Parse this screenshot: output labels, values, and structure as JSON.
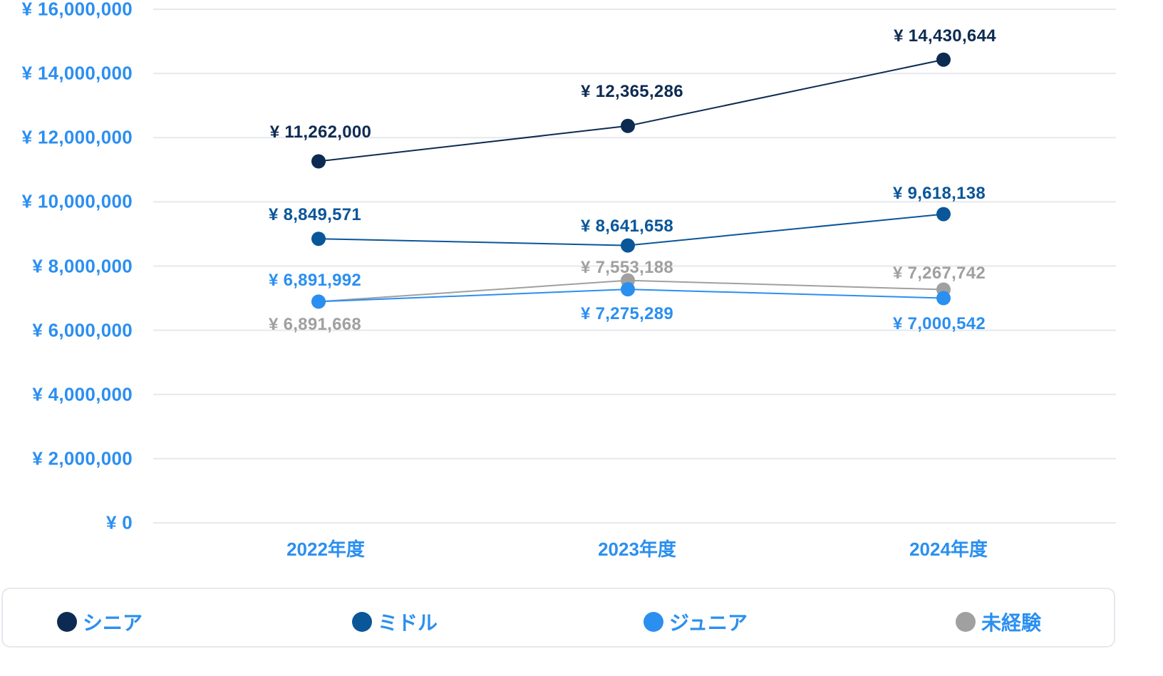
{
  "chart_data": {
    "type": "line",
    "title": "",
    "xlabel": "",
    "ylabel": "",
    "categories": [
      "2022年度",
      "2023年度",
      "2024年度"
    ],
    "ylim": [
      0,
      16000000
    ],
    "yticks": [
      "¥ 0",
      "¥ 2,000,000",
      "¥ 4,000,000",
      "¥ 6,000,000",
      "¥ 8,000,000",
      "¥ 10,000,000",
      "¥ 12,000,000",
      "¥ 14,000,000",
      "¥ 16,000,000"
    ],
    "grid": true,
    "legend_position": "bottom",
    "series": [
      {
        "name": "シニア",
        "color": "#0d2b52",
        "values": [
          11262000,
          12365286,
          14430644
        ],
        "labels": [
          "¥ 11,262,000",
          "¥ 12,365,286",
          "¥ 14,430,644"
        ]
      },
      {
        "name": "ミドル",
        "color": "#0a5699",
        "values": [
          8849571,
          8641658,
          9618138
        ],
        "labels": [
          "¥ 8,849,571",
          "¥ 8,641,658",
          "¥ 9,618,138"
        ]
      },
      {
        "name": "ジュニア",
        "color": "#2b8ff0",
        "values": [
          6891992,
          7275289,
          7000542
        ],
        "labels": [
          "¥ 6,891,992",
          "¥ 7,275,289",
          "¥ 7,000,542"
        ]
      },
      {
        "name": "未経験",
        "color": "#a0a0a0",
        "values": [
          6891668,
          7553188,
          7267742
        ],
        "labels": [
          "¥ 6,891,668",
          "¥ 7,553,188",
          "¥ 7,267,742"
        ]
      }
    ]
  },
  "legend": {
    "items": [
      {
        "label": "シニア",
        "color": "#0d2b52"
      },
      {
        "label": "ミドル",
        "color": "#0a5699"
      },
      {
        "label": "ジュニア",
        "color": "#2b8ff0"
      },
      {
        "label": "未経験",
        "color": "#a0a0a0"
      }
    ]
  },
  "colors": {
    "axis_text": "#2b8ff0",
    "gridline": "#e6e8ee"
  }
}
